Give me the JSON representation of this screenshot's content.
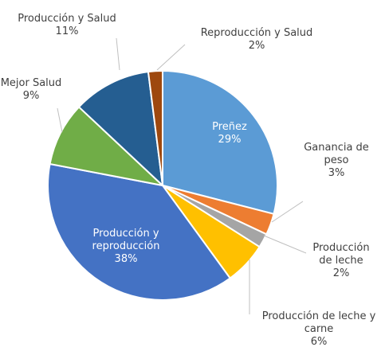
{
  "chart_data": {
    "type": "pie",
    "categories": [
      "Preñez",
      "Ganancia de peso",
      "Producción de leche",
      "Producción de leche y carne",
      "Producción y reproducción",
      "Mejor Salud",
      "Producción y Salud",
      "Reproducción y Salud"
    ],
    "values": [
      29,
      3,
      2,
      6,
      38,
      9,
      11,
      2
    ],
    "value_labels": [
      "29%",
      "3%",
      "2%",
      "6%",
      "38%",
      "9%",
      "11%",
      "2%"
    ],
    "colors": [
      "#5b9bd5",
      "#ed7d31",
      "#a5a5a5",
      "#ffc000",
      "#4472c4",
      "#70ad47",
      "#255e91",
      "#9e480e"
    ]
  }
}
